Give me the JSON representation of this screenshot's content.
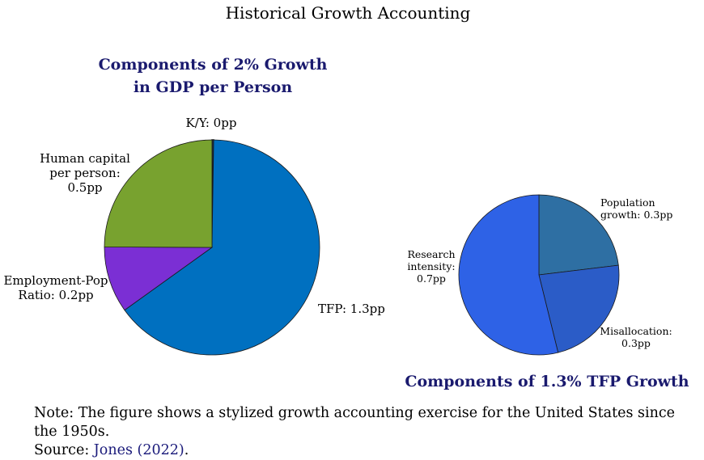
{
  "figure_title": "Historical Growth Accounting",
  "note": {
    "line1": "Note: The figure shows a stylized growth accounting exercise for the United States since the 1950s.",
    "source_prefix": "Source: ",
    "source_link": "Jones (2022)",
    "source_suffix": "."
  },
  "colors": {
    "title_blue": "#1a1a6e",
    "tfp": "#0070c0",
    "human_capital": "#78a22f",
    "employment_pop": "#7b2fd4",
    "ky": "#1f4e79",
    "population_growth": "#2e6fa3",
    "misallocation": "#2b5cc7",
    "research_intensity": "#2e62e6"
  },
  "chart_data": [
    {
      "type": "pie",
      "title": "Components of 2% Growth in GDP per Person",
      "title_lines": [
        "Components of 2% Growth",
        "in GDP per Person"
      ],
      "unit": "pp",
      "slices": [
        {
          "label_lines": [
            "K/Y: 0pp"
          ],
          "value": 0.005,
          "color_key": "ky"
        },
        {
          "label_lines": [
            "TFP: 1.3pp"
          ],
          "value": 1.3,
          "color_key": "tfp"
        },
        {
          "label_lines": [
            "Employment-Pop",
            "Ratio: 0.2pp"
          ],
          "value": 0.2,
          "color_key": "employment_pop"
        },
        {
          "label_lines": [
            "Human capital",
            "per person:",
            "0.5pp"
          ],
          "value": 0.5,
          "color_key": "human_capital"
        }
      ]
    },
    {
      "type": "pie",
      "title": "Components of 1.3% TFP Growth",
      "title_lines": [
        "Components of 1.3% TFP Growth"
      ],
      "unit": "pp",
      "slices": [
        {
          "label_lines": [
            "Population",
            "growth: 0.3pp"
          ],
          "value": 0.3,
          "color_key": "population_growth"
        },
        {
          "label_lines": [
            "Misallocation:",
            "0.3pp"
          ],
          "value": 0.3,
          "color_key": "misallocation"
        },
        {
          "label_lines": [
            "Research",
            "intensity:",
            "0.7pp"
          ],
          "value": 0.7,
          "color_key": "research_intensity"
        }
      ]
    }
  ]
}
